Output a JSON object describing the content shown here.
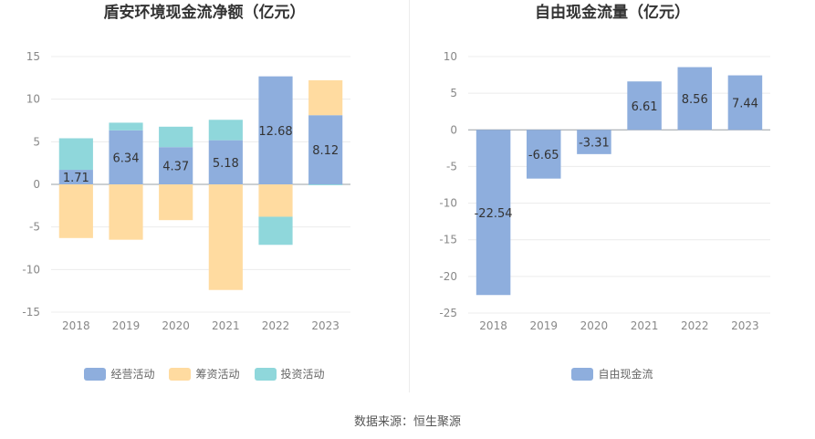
{
  "source_text": "数据来源：恒生聚源",
  "chart_data": [
    {
      "type": "bar",
      "stacked": true,
      "title": "盾安环境现金流净额（亿元）",
      "categories": [
        "2018",
        "2019",
        "2020",
        "2021",
        "2022",
        "2023"
      ],
      "ylim": [
        -15,
        15
      ],
      "yticks": [
        15,
        10,
        5,
        0,
        -5,
        -10,
        -15
      ],
      "grid": true,
      "legend_position": "bottom",
      "series": [
        {
          "name": "经营活动",
          "color": "#8eaedd",
          "values": [
            1.71,
            6.34,
            4.37,
            5.18,
            12.68,
            8.12
          ],
          "show_labels": true
        },
        {
          "name": "筹资活动",
          "color": "#ffdba0",
          "values": [
            -6.3,
            -6.5,
            -4.2,
            -12.4,
            -3.8,
            4.1
          ],
          "show_labels": false
        },
        {
          "name": "投资活动",
          "color": "#8fd7db",
          "values": [
            3.7,
            0.9,
            2.4,
            2.4,
            -3.3,
            -0.1
          ],
          "show_labels": false
        }
      ]
    },
    {
      "type": "bar",
      "title": "自由现金流量（亿元）",
      "categories": [
        "2018",
        "2019",
        "2020",
        "2021",
        "2022",
        "2023"
      ],
      "ylim": [
        -25,
        10
      ],
      "yticks": [
        10,
        5,
        0,
        -5,
        -10,
        -15,
        -20,
        -25
      ],
      "grid": true,
      "legend_position": "bottom",
      "series": [
        {
          "name": "自由现金流",
          "color": "#8eaedd",
          "values": [
            -22.54,
            -6.65,
            -3.31,
            6.61,
            8.56,
            7.44
          ],
          "show_labels": true
        }
      ]
    }
  ]
}
